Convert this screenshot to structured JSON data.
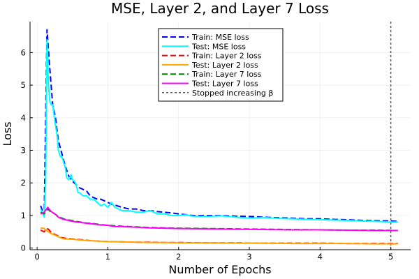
{
  "chart_data": {
    "type": "line",
    "title": "MSE, Layer 2, and Layer 7 Loss",
    "xlabel": "Number of Epochs",
    "ylabel": "Loss",
    "xlim": [
      -0.1,
      5.28
    ],
    "ylim": [
      -0.05,
      6.95
    ],
    "xticks": [
      0,
      1,
      2,
      3,
      4,
      5
    ],
    "xtick_labels": [
      "0",
      "1",
      "2",
      "3",
      "4",
      "5"
    ],
    "yticks": [
      0,
      1,
      2,
      3,
      4,
      5,
      6
    ],
    "ytick_labels": [
      "0",
      "1",
      "2",
      "3",
      "4",
      "5",
      "6"
    ],
    "grid": true,
    "legend_position": "top-center",
    "vline": {
      "x": 5.0,
      "name": "Stopped increasing β",
      "color": "#555555",
      "dash": "dotted"
    },
    "series": [
      {
        "name": "Train: MSE loss",
        "color": "#0000ff",
        "dash": "dashed",
        "x": [
          0.05,
          0.1,
          0.14,
          0.18,
          0.22,
          0.26,
          0.3,
          0.35,
          0.4,
          0.45,
          0.5,
          0.55,
          0.6,
          0.65,
          0.7,
          0.75,
          0.8,
          0.85,
          0.9,
          0.95,
          1.0,
          1.05,
          1.1,
          1.2,
          1.3,
          1.4,
          1.5,
          1.6,
          1.7,
          1.8,
          1.9,
          2.0,
          2.2,
          2.4,
          2.6,
          2.8,
          3.0,
          3.2,
          3.4,
          3.6,
          3.8,
          4.0,
          4.2,
          4.4,
          4.6,
          4.8,
          5.0,
          5.1
        ],
        "y": [
          1.3,
          1.0,
          6.7,
          5.5,
          4.4,
          4.0,
          3.3,
          2.9,
          2.5,
          2.2,
          2.05,
          1.95,
          1.85,
          1.8,
          1.75,
          1.6,
          1.55,
          1.5,
          1.5,
          1.45,
          1.4,
          1.35,
          1.32,
          1.25,
          1.2,
          1.2,
          1.15,
          1.15,
          1.12,
          1.1,
          1.08,
          1.05,
          1.0,
          1.0,
          1.0,
          0.98,
          0.97,
          0.95,
          0.93,
          0.92,
          0.9,
          0.9,
          0.88,
          0.87,
          0.85,
          0.84,
          0.83,
          0.82
        ]
      },
      {
        "name": "Test: MSE loss",
        "color": "#00ffff",
        "dash": "solid",
        "x": [
          0.05,
          0.08,
          0.1,
          0.12,
          0.14,
          0.16,
          0.18,
          0.2,
          0.22,
          0.25,
          0.28,
          0.3,
          0.33,
          0.35,
          0.38,
          0.4,
          0.42,
          0.45,
          0.48,
          0.5,
          0.53,
          0.55,
          0.58,
          0.6,
          0.65,
          0.7,
          0.75,
          0.8,
          0.85,
          0.9,
          0.95,
          1.0,
          1.05,
          1.1,
          1.15,
          1.2,
          1.3,
          1.4,
          1.5,
          1.6,
          1.7,
          1.8,
          1.9,
          2.0,
          2.1,
          2.2,
          2.4,
          2.6,
          2.8,
          3.0,
          3.2,
          3.4,
          3.6,
          3.8,
          4.0,
          4.2,
          4.4,
          4.6,
          4.8,
          5.0,
          5.1
        ],
        "y": [
          1.2,
          1.05,
          0.95,
          2.0,
          6.4,
          5.0,
          4.5,
          4.4,
          4.4,
          3.9,
          3.5,
          3.0,
          2.8,
          2.8,
          2.6,
          2.45,
          2.15,
          2.1,
          2.25,
          2.1,
          2.05,
          1.95,
          1.7,
          1.7,
          1.6,
          1.6,
          1.5,
          1.5,
          1.4,
          1.3,
          1.35,
          1.25,
          1.4,
          1.25,
          1.2,
          1.15,
          1.15,
          1.1,
          1.1,
          1.15,
          1.05,
          1.05,
          1.0,
          1.0,
          1.02,
          0.98,
          0.97,
          0.99,
          0.95,
          0.92,
          0.94,
          0.91,
          0.9,
          0.88,
          0.87,
          0.86,
          0.85,
          0.83,
          0.82,
          0.8,
          0.8
        ]
      },
      {
        "name": "Train: Layer 2 loss",
        "color": "#ff0000",
        "dash": "dashed",
        "x": [
          0.05,
          0.1,
          0.13,
          0.16,
          0.2,
          0.25,
          0.3,
          0.35,
          0.4,
          0.5,
          0.6,
          0.7,
          0.8,
          0.9,
          1.0,
          1.2,
          1.4,
          1.6,
          1.8,
          2.0,
          2.4,
          2.8,
          3.2,
          3.6,
          4.0,
          4.4,
          4.8,
          5.1
        ],
        "y": [
          0.55,
          0.5,
          0.6,
          0.58,
          0.48,
          0.42,
          0.37,
          0.32,
          0.3,
          0.28,
          0.26,
          0.24,
          0.22,
          0.21,
          0.2,
          0.19,
          0.18,
          0.18,
          0.17,
          0.17,
          0.16,
          0.16,
          0.15,
          0.15,
          0.15,
          0.14,
          0.14,
          0.14
        ]
      },
      {
        "name": "Test: Layer 2 loss",
        "color": "#ffa500",
        "dash": "solid",
        "x": [
          0.05,
          0.1,
          0.13,
          0.16,
          0.2,
          0.25,
          0.3,
          0.35,
          0.4,
          0.5,
          0.6,
          0.7,
          0.8,
          0.9,
          1.0,
          1.2,
          1.4,
          1.6,
          1.8,
          2.0,
          2.4,
          2.8,
          3.2,
          3.6,
          4.0,
          4.4,
          4.8,
          5.1
        ],
        "y": [
          0.62,
          0.6,
          0.55,
          0.5,
          0.44,
          0.4,
          0.35,
          0.3,
          0.28,
          0.27,
          0.25,
          0.23,
          0.22,
          0.21,
          0.2,
          0.19,
          0.18,
          0.17,
          0.17,
          0.16,
          0.16,
          0.15,
          0.15,
          0.14,
          0.14,
          0.14,
          0.13,
          0.13
        ]
      },
      {
        "name": "Train: Layer 7 loss",
        "color": "#008000",
        "dash": "dashed",
        "x": [
          0.05,
          0.1,
          0.15,
          0.2,
          0.25,
          0.3,
          0.35,
          0.4,
          0.5,
          0.6,
          0.7,
          0.8,
          0.9,
          1.0,
          1.2,
          1.4,
          1.6,
          1.8,
          2.0,
          2.4,
          2.8,
          3.2,
          3.6,
          4.0,
          4.4,
          4.8,
          5.1
        ],
        "y": [
          1.1,
          1.05,
          1.2,
          1.1,
          1.05,
          0.97,
          0.92,
          0.88,
          0.84,
          0.8,
          0.77,
          0.75,
          0.72,
          0.7,
          0.67,
          0.65,
          0.63,
          0.62,
          0.61,
          0.6,
          0.59,
          0.58,
          0.57,
          0.56,
          0.55,
          0.55,
          0.54
        ]
      },
      {
        "name": "Test: Layer 7 loss",
        "color": "#ff00ff",
        "dash": "solid",
        "x": [
          0.05,
          0.1,
          0.15,
          0.2,
          0.25,
          0.3,
          0.35,
          0.4,
          0.5,
          0.6,
          0.7,
          0.8,
          0.9,
          1.0,
          1.1,
          1.2,
          1.4,
          1.6,
          1.8,
          2.0,
          2.4,
          2.8,
          3.2,
          3.6,
          4.0,
          4.4,
          4.8,
          5.1
        ],
        "y": [
          1.05,
          1.1,
          1.25,
          1.12,
          1.05,
          0.95,
          0.9,
          0.87,
          0.82,
          0.79,
          0.76,
          0.74,
          0.71,
          0.7,
          0.66,
          0.66,
          0.64,
          0.62,
          0.61,
          0.6,
          0.59,
          0.58,
          0.57,
          0.56,
          0.56,
          0.55,
          0.54,
          0.54
        ]
      }
    ]
  }
}
